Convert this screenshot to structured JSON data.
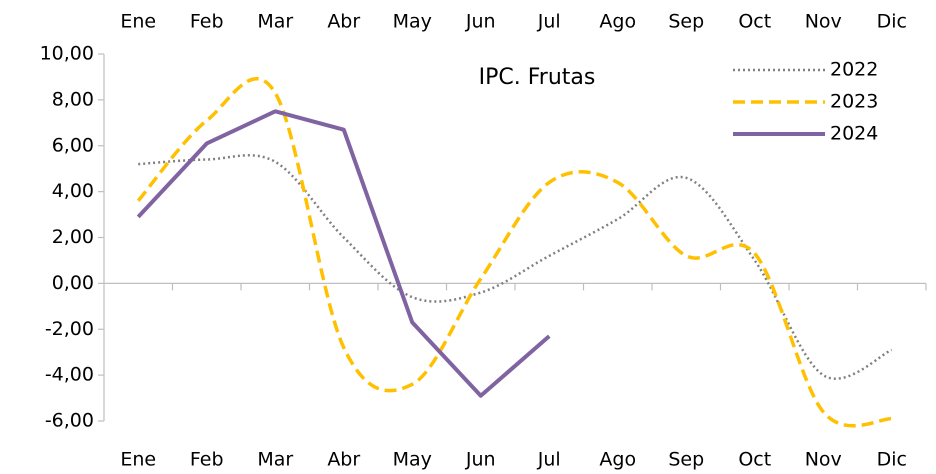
{
  "chart_data": {
    "type": "line",
    "title": "IPC. Frutas",
    "categories": [
      "Ene",
      "Feb",
      "Mar",
      "Abr",
      "May",
      "Jun",
      "Jul",
      "Ago",
      "Sep",
      "Oct",
      "Nov",
      "Dic"
    ],
    "series": [
      {
        "name": "2022",
        "color": "#808080",
        "style": "dotted",
        "smooth": true,
        "values": [
          5.2,
          5.4,
          5.3,
          2.0,
          -0.6,
          -0.4,
          1.2,
          2.8,
          4.6,
          1.0,
          -4.0,
          -2.9
        ]
      },
      {
        "name": "2023",
        "color": "#FFC000",
        "style": "dashed",
        "smooth": true,
        "values": [
          3.6,
          7.1,
          8.3,
          -2.8,
          -4.4,
          0.2,
          4.4,
          4.4,
          1.2,
          1.3,
          -5.6,
          -5.9
        ]
      },
      {
        "name": "2024",
        "color": "#8064A2",
        "style": "solid",
        "smooth": false,
        "values": [
          2.9,
          6.1,
          7.5,
          6.7,
          -1.7,
          -4.9,
          -2.3,
          null,
          null,
          null,
          null,
          null
        ]
      }
    ],
    "ylim": [
      -6,
      10
    ],
    "yticks": [
      {
        "value": -6,
        "label": "-6,00"
      },
      {
        "value": -4,
        "label": "-4,00"
      },
      {
        "value": -2,
        "label": "-2,00"
      },
      {
        "value": 0,
        "label": "0,00"
      },
      {
        "value": 2,
        "label": "2,00"
      },
      {
        "value": 4,
        "label": "4,00"
      },
      {
        "value": 6,
        "label": "6,00"
      },
      {
        "value": 8,
        "label": "8,00"
      },
      {
        "value": 10,
        "label": "10,00"
      }
    ],
    "grid": false,
    "legend": "top-right"
  }
}
